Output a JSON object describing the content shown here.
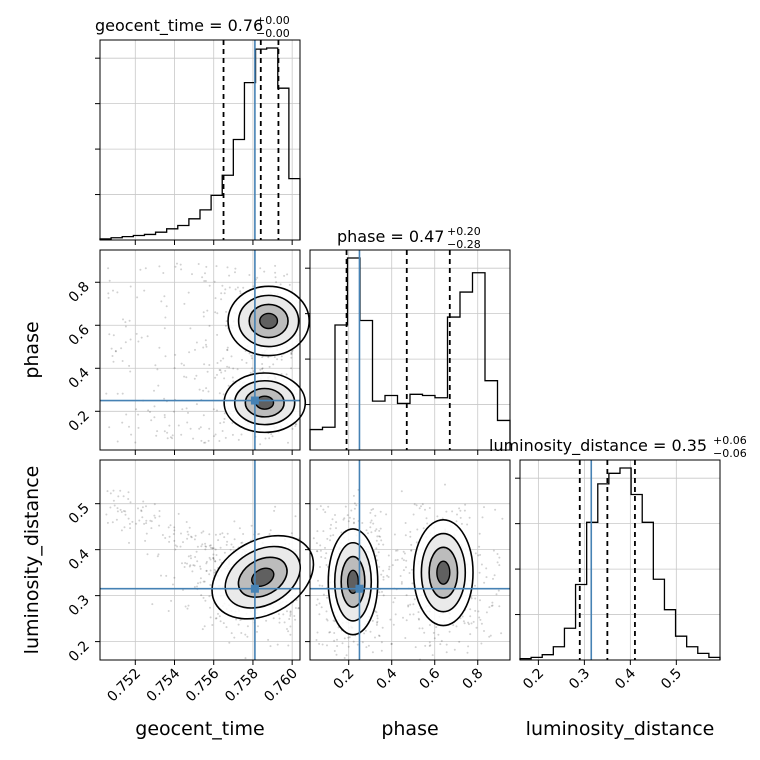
{
  "chart_data": {
    "type": "corner",
    "parameters": [
      "geocent_time",
      "phase",
      "luminosity_distance"
    ],
    "titles": {
      "geocent_time": {
        "label": "geocent_time = 0.76",
        "plus": "+0.00",
        "minus": "−0.00"
      },
      "phase": {
        "label": "phase = 0.47",
        "plus": "+0.20",
        "minus": "−0.28"
      },
      "luminosity_distance": {
        "label": "luminosity_distance = 0.35",
        "plus": "+0.06",
        "minus": "−0.06"
      }
    },
    "axis_labels": {
      "x": [
        "geocent_time",
        "phase",
        "luminosity_distance"
      ],
      "y": [
        "phase",
        "luminosity_distance"
      ]
    },
    "ranges": {
      "geocent_time": [
        0.7502,
        0.7604
      ],
      "phase": [
        0.02,
        0.95
      ],
      "luminosity_distance": [
        0.16,
        0.595
      ]
    },
    "ticks": {
      "geocent_time": {
        "values": [
          0.752,
          0.754,
          0.756,
          0.758,
          0.76
        ],
        "labels": [
          "0.752",
          "0.754",
          "0.756",
          "0.758",
          "0.760"
        ]
      },
      "phase": {
        "values": [
          0.2,
          0.4,
          0.6,
          0.8
        ],
        "labels": [
          "0.2",
          "0.4",
          "0.6",
          "0.8"
        ]
      },
      "luminosity_distance": {
        "values": [
          0.2,
          0.3,
          0.4,
          0.5
        ],
        "labels": [
          "0.2",
          "0.3",
          "0.4",
          "0.5"
        ]
      }
    },
    "truths": {
      "geocent_time": 0.7581,
      "phase": 0.25,
      "luminosity_distance": 0.315
    },
    "quantiles": {
      "geocent_time": [
        0.7565,
        0.7584,
        0.7593
      ],
      "phase": [
        0.19,
        0.47,
        0.67
      ],
      "luminosity_distance": [
        0.29,
        0.35,
        0.41
      ]
    },
    "histograms": {
      "geocent_time": [
        1,
        2,
        3,
        4,
        5,
        7,
        10,
        13,
        19,
        27,
        40,
        58,
        90,
        141,
        171,
        172,
        136,
        55
      ],
      "phase": [
        18,
        20,
        110,
        169,
        114,
        43,
        48,
        41,
        49,
        48,
        46,
        117,
        139,
        156,
        61,
        26
      ],
      "luminosity_distance": [
        1,
        2,
        4,
        10,
        24,
        57,
        104,
        133,
        141,
        145,
        125,
        104,
        61,
        38,
        18,
        10,
        5,
        2
      ]
    },
    "grid": true,
    "contour_levels": 4
  },
  "colors": {
    "truth": "#4682b4",
    "line": "#000000",
    "grid": "#c8c8c8",
    "points": "#000000"
  }
}
